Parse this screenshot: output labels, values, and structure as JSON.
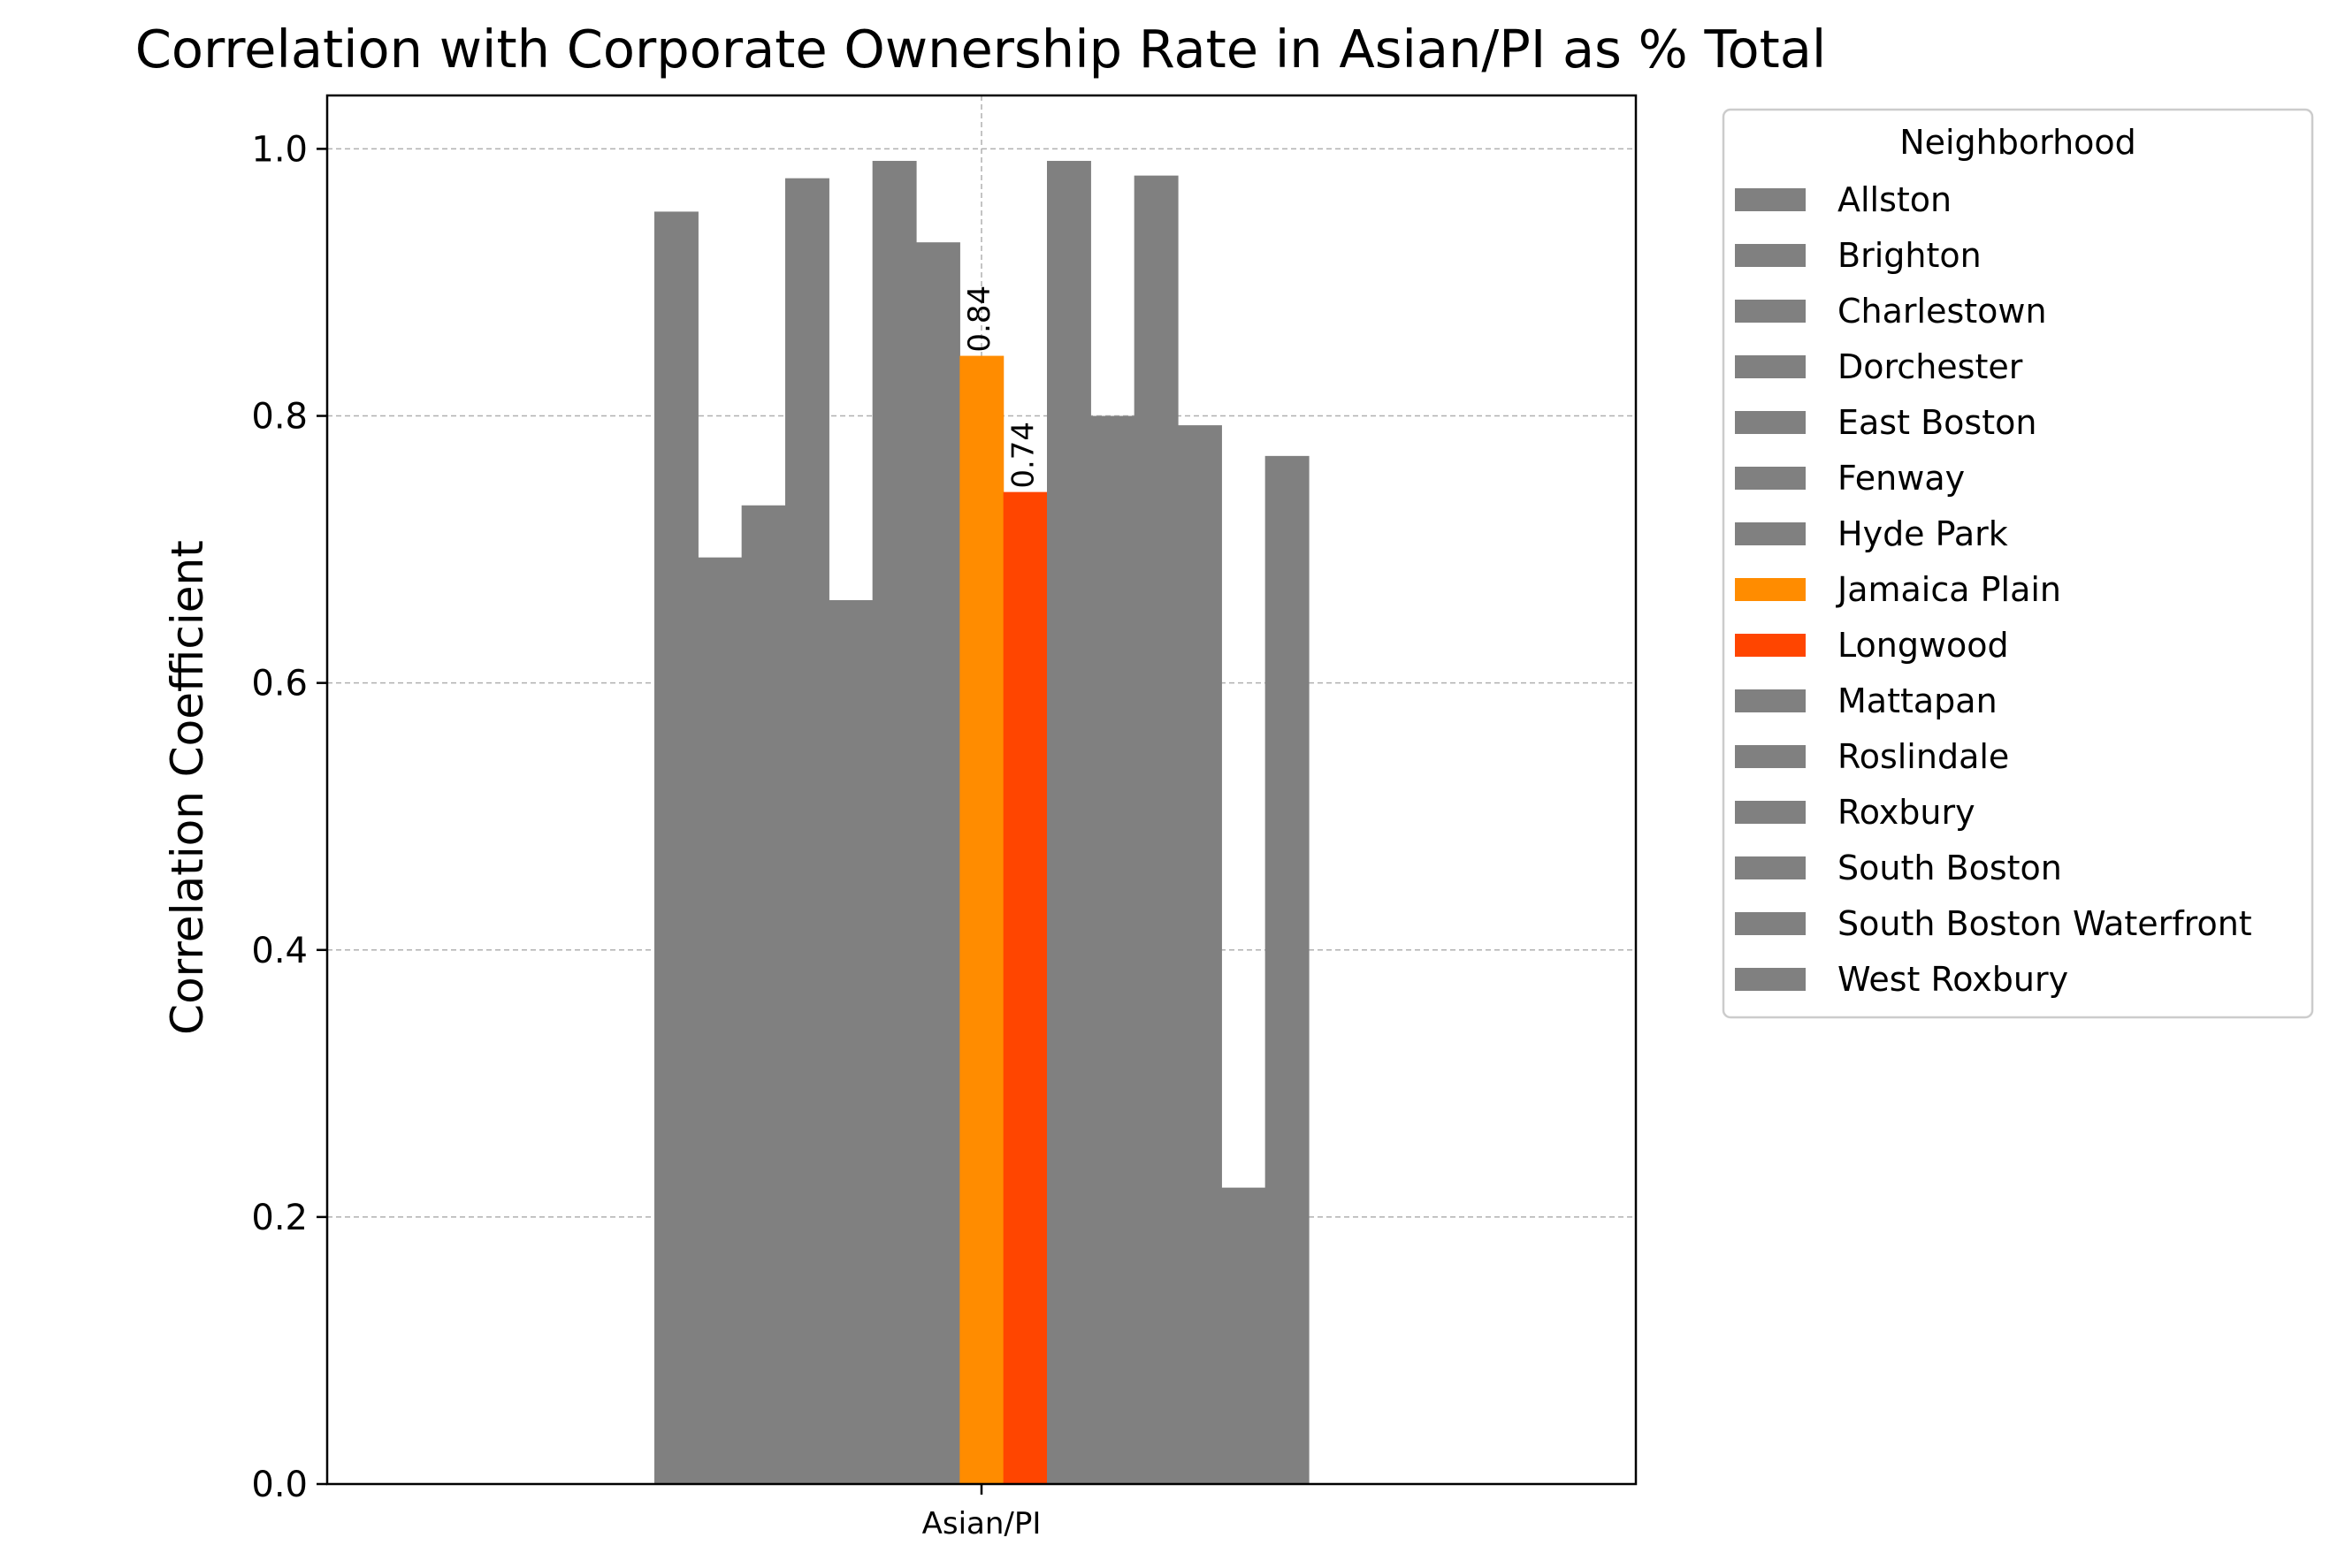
{
  "chart_data": {
    "type": "bar",
    "title": "Correlation with Corporate Ownership Rate in Asian/PI as % Total",
    "xlabel": "",
    "ylabel": "Correlation Coefficient",
    "categories": [
      "Asian/PI"
    ],
    "ylim": [
      0,
      1.04
    ],
    "yticks": [
      0.0,
      0.2,
      0.4,
      0.6,
      0.8,
      1.0
    ],
    "ytick_labels": [
      "0.0",
      "0.2",
      "0.4",
      "0.6",
      "0.8",
      "1.0"
    ],
    "grid": true,
    "legend": {
      "title": "Neighborhood",
      "placement": "outside-right"
    },
    "series": [
      {
        "name": "Allston",
        "values": [
          0.953
        ],
        "color": "#808080"
      },
      {
        "name": "Brighton",
        "values": [
          0.694
        ],
        "color": "#808080"
      },
      {
        "name": "Charlestown",
        "values": [
          0.733
        ],
        "color": "#808080"
      },
      {
        "name": "Dorchester",
        "values": [
          0.978
        ],
        "color": "#808080"
      },
      {
        "name": "East Boston",
        "values": [
          0.662
        ],
        "color": "#808080"
      },
      {
        "name": "Fenway",
        "values": [
          0.991
        ],
        "color": "#808080"
      },
      {
        "name": "Hyde Park",
        "values": [
          0.93
        ],
        "color": "#808080"
      },
      {
        "name": "Jamaica Plain",
        "values": [
          0.845
        ],
        "color": "#ff8c00",
        "label": "0.84"
      },
      {
        "name": "Longwood",
        "values": [
          0.743
        ],
        "color": "#ff4500",
        "label": "0.74"
      },
      {
        "name": "Mattapan",
        "values": [
          0.991
        ],
        "color": "#808080"
      },
      {
        "name": "Roslindale",
        "values": [
          0.8
        ],
        "color": "#808080"
      },
      {
        "name": "Roxbury",
        "values": [
          0.98
        ],
        "color": "#808080"
      },
      {
        "name": "South Boston",
        "values": [
          0.793
        ],
        "color": "#808080"
      },
      {
        "name": "South Boston Waterfront",
        "values": [
          0.222
        ],
        "color": "#808080"
      },
      {
        "name": "West Roxbury",
        "values": [
          0.77
        ],
        "color": "#808080"
      }
    ]
  }
}
